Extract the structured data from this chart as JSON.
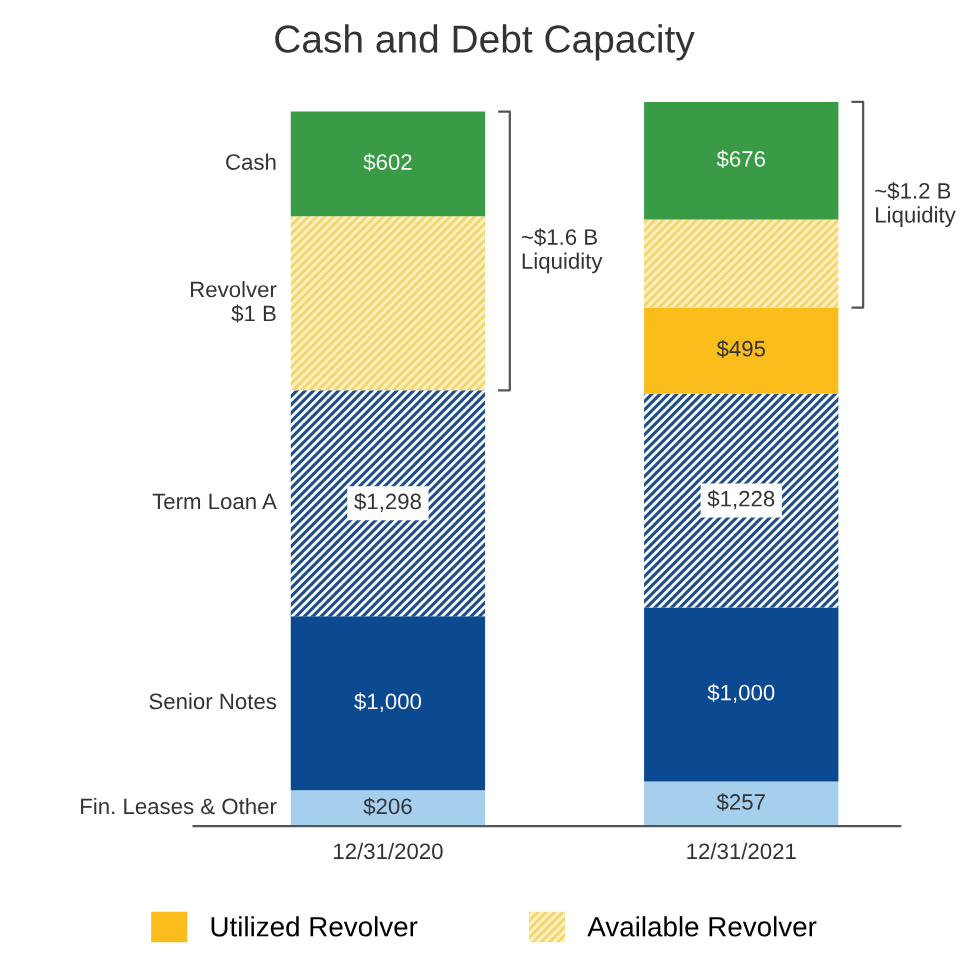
{
  "chart_data": {
    "type": "bar",
    "title": "Cash and Debt Capacity",
    "stacked": true,
    "categories": [
      "12/31/2020",
      "12/31/2021"
    ],
    "series": [
      {
        "name": "Fin. Leases & Other",
        "color": "#a6cfee",
        "values": [
          206,
          257
        ],
        "value_labels": [
          "$206",
          "$257"
        ]
      },
      {
        "name": "Senior Notes",
        "color": "#0b4a91",
        "values": [
          1000,
          1000
        ],
        "value_labels": [
          "$1,000",
          "$1,000"
        ]
      },
      {
        "name": "Term Loan A",
        "color": "#1f4e8c",
        "values": [
          1298,
          1228
        ],
        "value_labels": [
          "$1,298",
          "$1,228"
        ]
      },
      {
        "name": "Utilized Revolver",
        "color": "#fbbd1c",
        "values": [
          0,
          495
        ],
        "value_labels": [
          null,
          "$495"
        ]
      },
      {
        "name": "Available Revolver",
        "color": "#f3d56a",
        "values": [
          1000,
          505
        ],
        "value_labels": [
          null,
          null
        ]
      },
      {
        "name": "Cash",
        "color": "#3a9b46",
        "values": [
          602,
          676
        ],
        "value_labels": [
          "$602",
          "$676"
        ]
      }
    ],
    "annotations": [
      "Revolver\n$1 B",
      "~$1.6 B\nLiquidity",
      "~$1.2 B\nLiquidity"
    ],
    "legend": "bottom",
    "grid": false
  }
}
